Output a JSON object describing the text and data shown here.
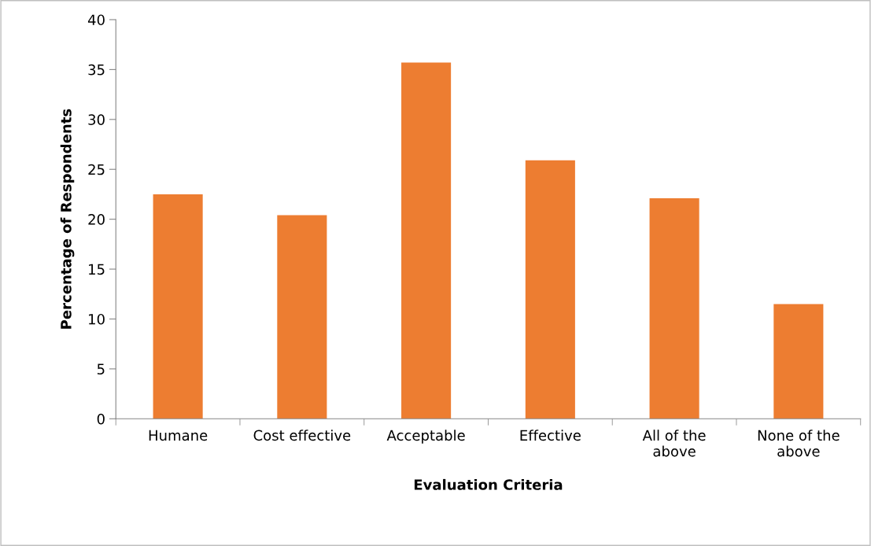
{
  "chart_data": {
    "type": "bar",
    "xlabel": "Evaluation Criteria",
    "ylabel": "Percentage of Respondents",
    "categories": [
      "Humane",
      "Cost effective",
      "Acceptable",
      "Effective",
      "All of the\nabove",
      "None of the\nabove"
    ],
    "values": [
      22.5,
      20.4,
      35.7,
      25.9,
      22.1,
      11.5
    ],
    "color": "#ed7d31",
    "ylim": [
      0,
      40
    ],
    "yticks": [
      0,
      5,
      10,
      15,
      20,
      25,
      30,
      35,
      40
    ],
    "grid": false
  }
}
